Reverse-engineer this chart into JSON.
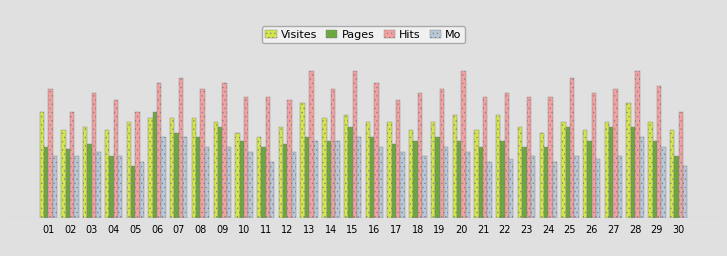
{
  "days": [
    "01",
    "02",
    "03",
    "04",
    "05",
    "06",
    "07",
    "08",
    "09",
    "10",
    "11",
    "12",
    "13",
    "14",
    "15",
    "16",
    "17",
    "18",
    "19",
    "20",
    "21",
    "22",
    "23",
    "24",
    "25",
    "26",
    "27",
    "28",
    "29",
    "30"
  ],
  "visites": [
    72,
    60,
    62,
    60,
    65,
    68,
    68,
    68,
    65,
    58,
    55,
    62,
    78,
    68,
    70,
    65,
    65,
    60,
    65,
    70,
    60,
    70,
    62,
    58,
    65,
    60,
    65,
    78,
    65,
    60
  ],
  "pages": [
    48,
    47,
    50,
    42,
    35,
    72,
    58,
    55,
    62,
    52,
    48,
    50,
    55,
    52,
    62,
    55,
    50,
    52,
    55,
    52,
    48,
    52,
    48,
    48,
    62,
    52,
    62,
    62,
    52,
    42
  ],
  "hits": [
    88,
    72,
    85,
    80,
    72,
    92,
    95,
    88,
    92,
    82,
    82,
    80,
    100,
    88,
    100,
    92,
    80,
    85,
    88,
    100,
    82,
    85,
    82,
    82,
    95,
    85,
    88,
    100,
    90,
    72
  ],
  "mo": [
    42,
    42,
    45,
    42,
    38,
    55,
    55,
    48,
    48,
    45,
    38,
    45,
    52,
    52,
    55,
    48,
    45,
    42,
    48,
    45,
    38,
    40,
    42,
    38,
    42,
    40,
    42,
    55,
    48,
    35
  ],
  "colors": {
    "visites": "#d4e64a",
    "pages": "#6aaa3a",
    "hits": "#f4a0a0",
    "mo": "#b8c8d8"
  },
  "legend_labels": [
    "Visites",
    "Pages",
    "Hits",
    "Mo"
  ],
  "background_color": "#e0e0e0",
  "plot_background": "#e0e0e0",
  "ylim": [
    0,
    110
  ],
  "bar_width": 0.2,
  "legend_fontsize": 8,
  "tick_fontsize": 7
}
